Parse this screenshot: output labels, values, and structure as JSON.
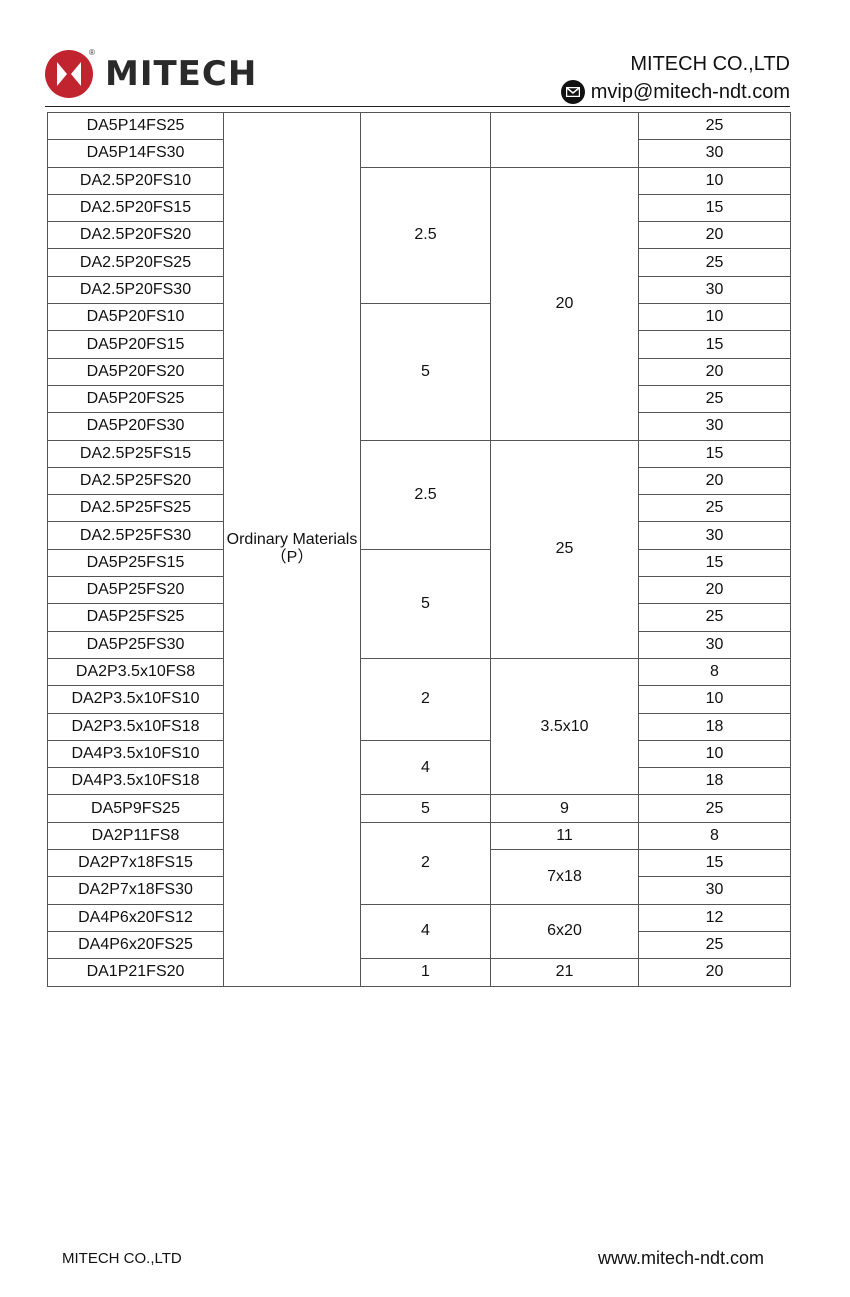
{
  "header": {
    "logo_text": "MITECH",
    "company": "MITECH  CO.,LTD",
    "email": "mvip@mitech-ndt.com",
    "brand_color": "#c1232f"
  },
  "table": {
    "material": "Ordinary Materials（P）",
    "models": [
      "DA5P14FS25",
      "DA5P14FS30",
      "DA2.5P20FS10",
      "DA2.5P20FS15",
      "DA2.5P20FS20",
      "DA2.5P20FS25",
      "DA2.5P20FS30",
      "DA5P20FS10",
      "DA5P20FS15",
      "DA5P20FS20",
      "DA5P20FS25",
      "DA5P20FS30",
      "DA2.5P25FS15",
      "DA2.5P25FS20",
      "DA2.5P25FS25",
      "DA2.5P25FS30",
      "DA5P25FS15",
      "DA5P25FS20",
      "DA5P25FS25",
      "DA5P25FS30",
      "DA2P3.5x10FS8",
      "DA2P3.5x10FS10",
      "DA2P3.5x10FS18",
      "DA4P3.5x10FS10",
      "DA4P3.5x10FS18",
      "DA5P9FS25",
      "DA2P11FS8",
      "DA2P7x18FS15",
      "DA2P7x18FS30",
      "DA4P6x20FS12",
      "DA4P6x20FS25",
      "DA1P21FS20"
    ],
    "col3": [
      {
        "value": "",
        "span": 2
      },
      {
        "value": "2.5",
        "span": 5
      },
      {
        "value": "5",
        "span": 5
      },
      {
        "value": "2.5",
        "span": 4
      },
      {
        "value": "5",
        "span": 4
      },
      {
        "value": "2",
        "span": 3
      },
      {
        "value": "4",
        "span": 2
      },
      {
        "value": "5",
        "span": 1
      },
      {
        "value": "2",
        "span": 3
      },
      {
        "value": "4",
        "span": 2
      },
      {
        "value": "1",
        "span": 1
      }
    ],
    "col4": [
      {
        "value": "",
        "span": 2
      },
      {
        "value": "20",
        "span": 10
      },
      {
        "value": "25",
        "span": 8
      },
      {
        "value": "3.5x10",
        "span": 5
      },
      {
        "value": "9",
        "span": 1
      },
      {
        "value": "11",
        "span": 1
      },
      {
        "value": "7x18",
        "span": 2
      },
      {
        "value": "6x20",
        "span": 2
      },
      {
        "value": "21",
        "span": 1
      }
    ],
    "col5": [
      "25",
      "30",
      "10",
      "15",
      "20",
      "25",
      "30",
      "10",
      "15",
      "20",
      "25",
      "30",
      "15",
      "20",
      "25",
      "30",
      "15",
      "20",
      "25",
      "30",
      "8",
      "10",
      "18",
      "10",
      "18",
      "25",
      "8",
      "15",
      "30",
      "12",
      "25",
      "20"
    ]
  },
  "footer": {
    "company": "MITECH CO.,LTD",
    "website": "www.mitech-ndt.com"
  }
}
